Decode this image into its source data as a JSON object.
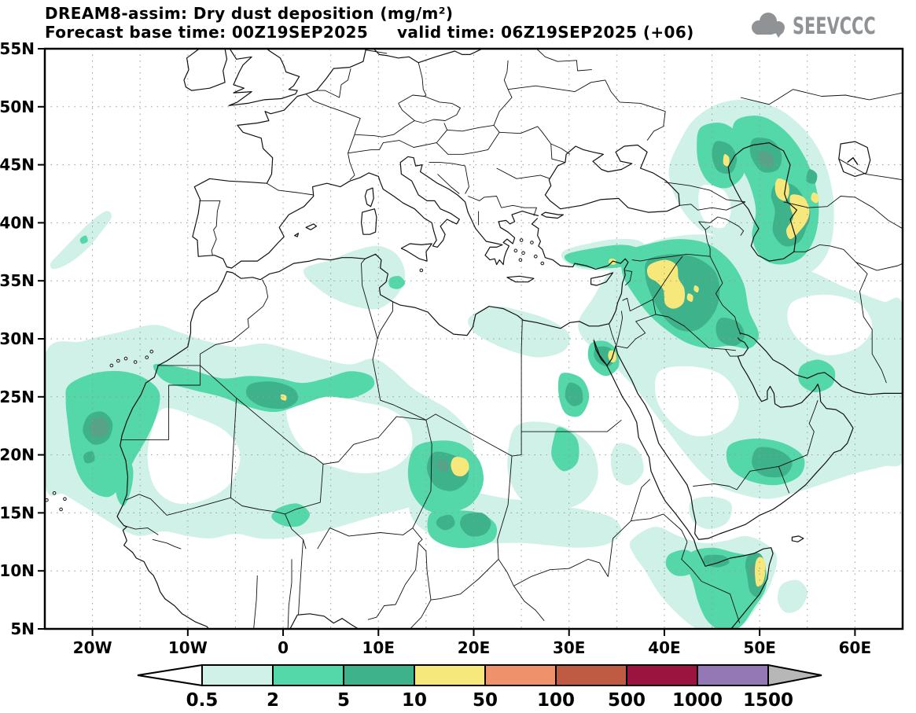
{
  "header": {
    "line1": "DREAM8-assim: Dry dust deposition (mg/m²)",
    "line2": "Forecast base time: 00Z19SEP2025     valid time: 06Z19SEP2025 (+06)"
  },
  "logo": {
    "text": "SEEVCCC",
    "cloud_icon_color": "#8f9396"
  },
  "map": {
    "x_tick_labels": [
      "20W",
      "10W",
      "0",
      "10E",
      "20E",
      "30E",
      "40E",
      "50E",
      "60E"
    ],
    "y_tick_labels": [
      "55N",
      "50N",
      "45N",
      "40N",
      "35N",
      "30N",
      "25N",
      "20N",
      "15N",
      "10N",
      "5N"
    ],
    "lon_range": [
      -25,
      65
    ],
    "lat_range": [
      5,
      55
    ],
    "grid_step_deg": 5
  },
  "colorbar": {
    "tick_labels": [
      "0.5",
      "2",
      "5",
      "10",
      "50",
      "100",
      "500",
      "1000",
      "1500"
    ],
    "segment_colors": [
      "#d0f1e8",
      "#54d7a9",
      "#3eb28a",
      "#f6e87a",
      "#ef916b",
      "#bf5b42",
      "#9b1440",
      "#9478b5"
    ],
    "left_arrow_color": "#ffffff",
    "right_arrow_color": "#b7b7b7",
    "units": "mg/m²"
  },
  "dust_levels": {
    "l05": "#d0f1e8",
    "l2": "#54d7a9",
    "l5": "#3eb28a",
    "deep": "#58a287",
    "l10": "#f6e87a"
  }
}
